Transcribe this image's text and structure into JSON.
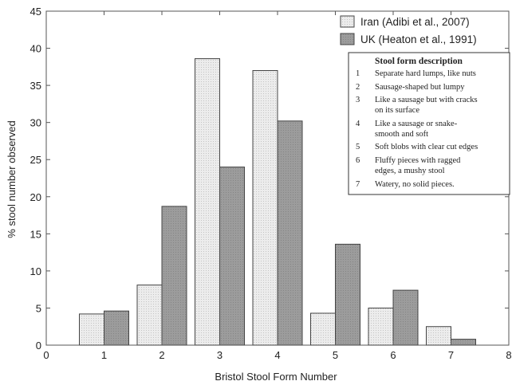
{
  "chart_data": {
    "type": "bar",
    "x": [
      1,
      2,
      3,
      4,
      5,
      6,
      7
    ],
    "xlim": [
      0,
      8
    ],
    "ylim": [
      0,
      45
    ],
    "x_ticks": [
      "0",
      "1",
      "2",
      "3",
      "4",
      "5",
      "6",
      "7",
      "8"
    ],
    "y_ticks": [
      "0",
      "5",
      "10",
      "15",
      "20",
      "25",
      "30",
      "35",
      "40",
      "45"
    ],
    "xlabel": "Bristol Stool Form Number",
    "ylabel": "% stool number observed",
    "legend_position": "top-right",
    "grid": false,
    "series": [
      {
        "name": "Iran (Adibi et al., 2007)",
        "color": "#e8e8e8",
        "values": [
          4.2,
          8.1,
          38.6,
          37.0,
          4.3,
          5.0,
          2.5
        ]
      },
      {
        "name": "UK (Heaton et al., 1991)",
        "color": "#999999",
        "values": [
          4.6,
          18.7,
          24.0,
          30.2,
          13.6,
          7.4,
          0.8
        ]
      }
    ],
    "description_box": {
      "title": "Stool form description",
      "items": [
        {
          "num": "1",
          "lines": [
            "Separate hard lumps, like nuts"
          ]
        },
        {
          "num": "2",
          "lines": [
            "Sausage-shaped but lumpy"
          ]
        },
        {
          "num": "3",
          "lines": [
            "Like a sausage but with cracks",
            "on its surface"
          ]
        },
        {
          "num": "4",
          "lines": [
            "Like a sausage or snake-",
            "smooth and soft"
          ]
        },
        {
          "num": "5",
          "lines": [
            "Soft blobs with clear cut edges"
          ]
        },
        {
          "num": "6",
          "lines": [
            "Fluffy pieces with ragged",
            "edges, a mushy stool"
          ]
        },
        {
          "num": "7",
          "lines": [
            "Watery, no solid pieces."
          ]
        }
      ]
    }
  }
}
